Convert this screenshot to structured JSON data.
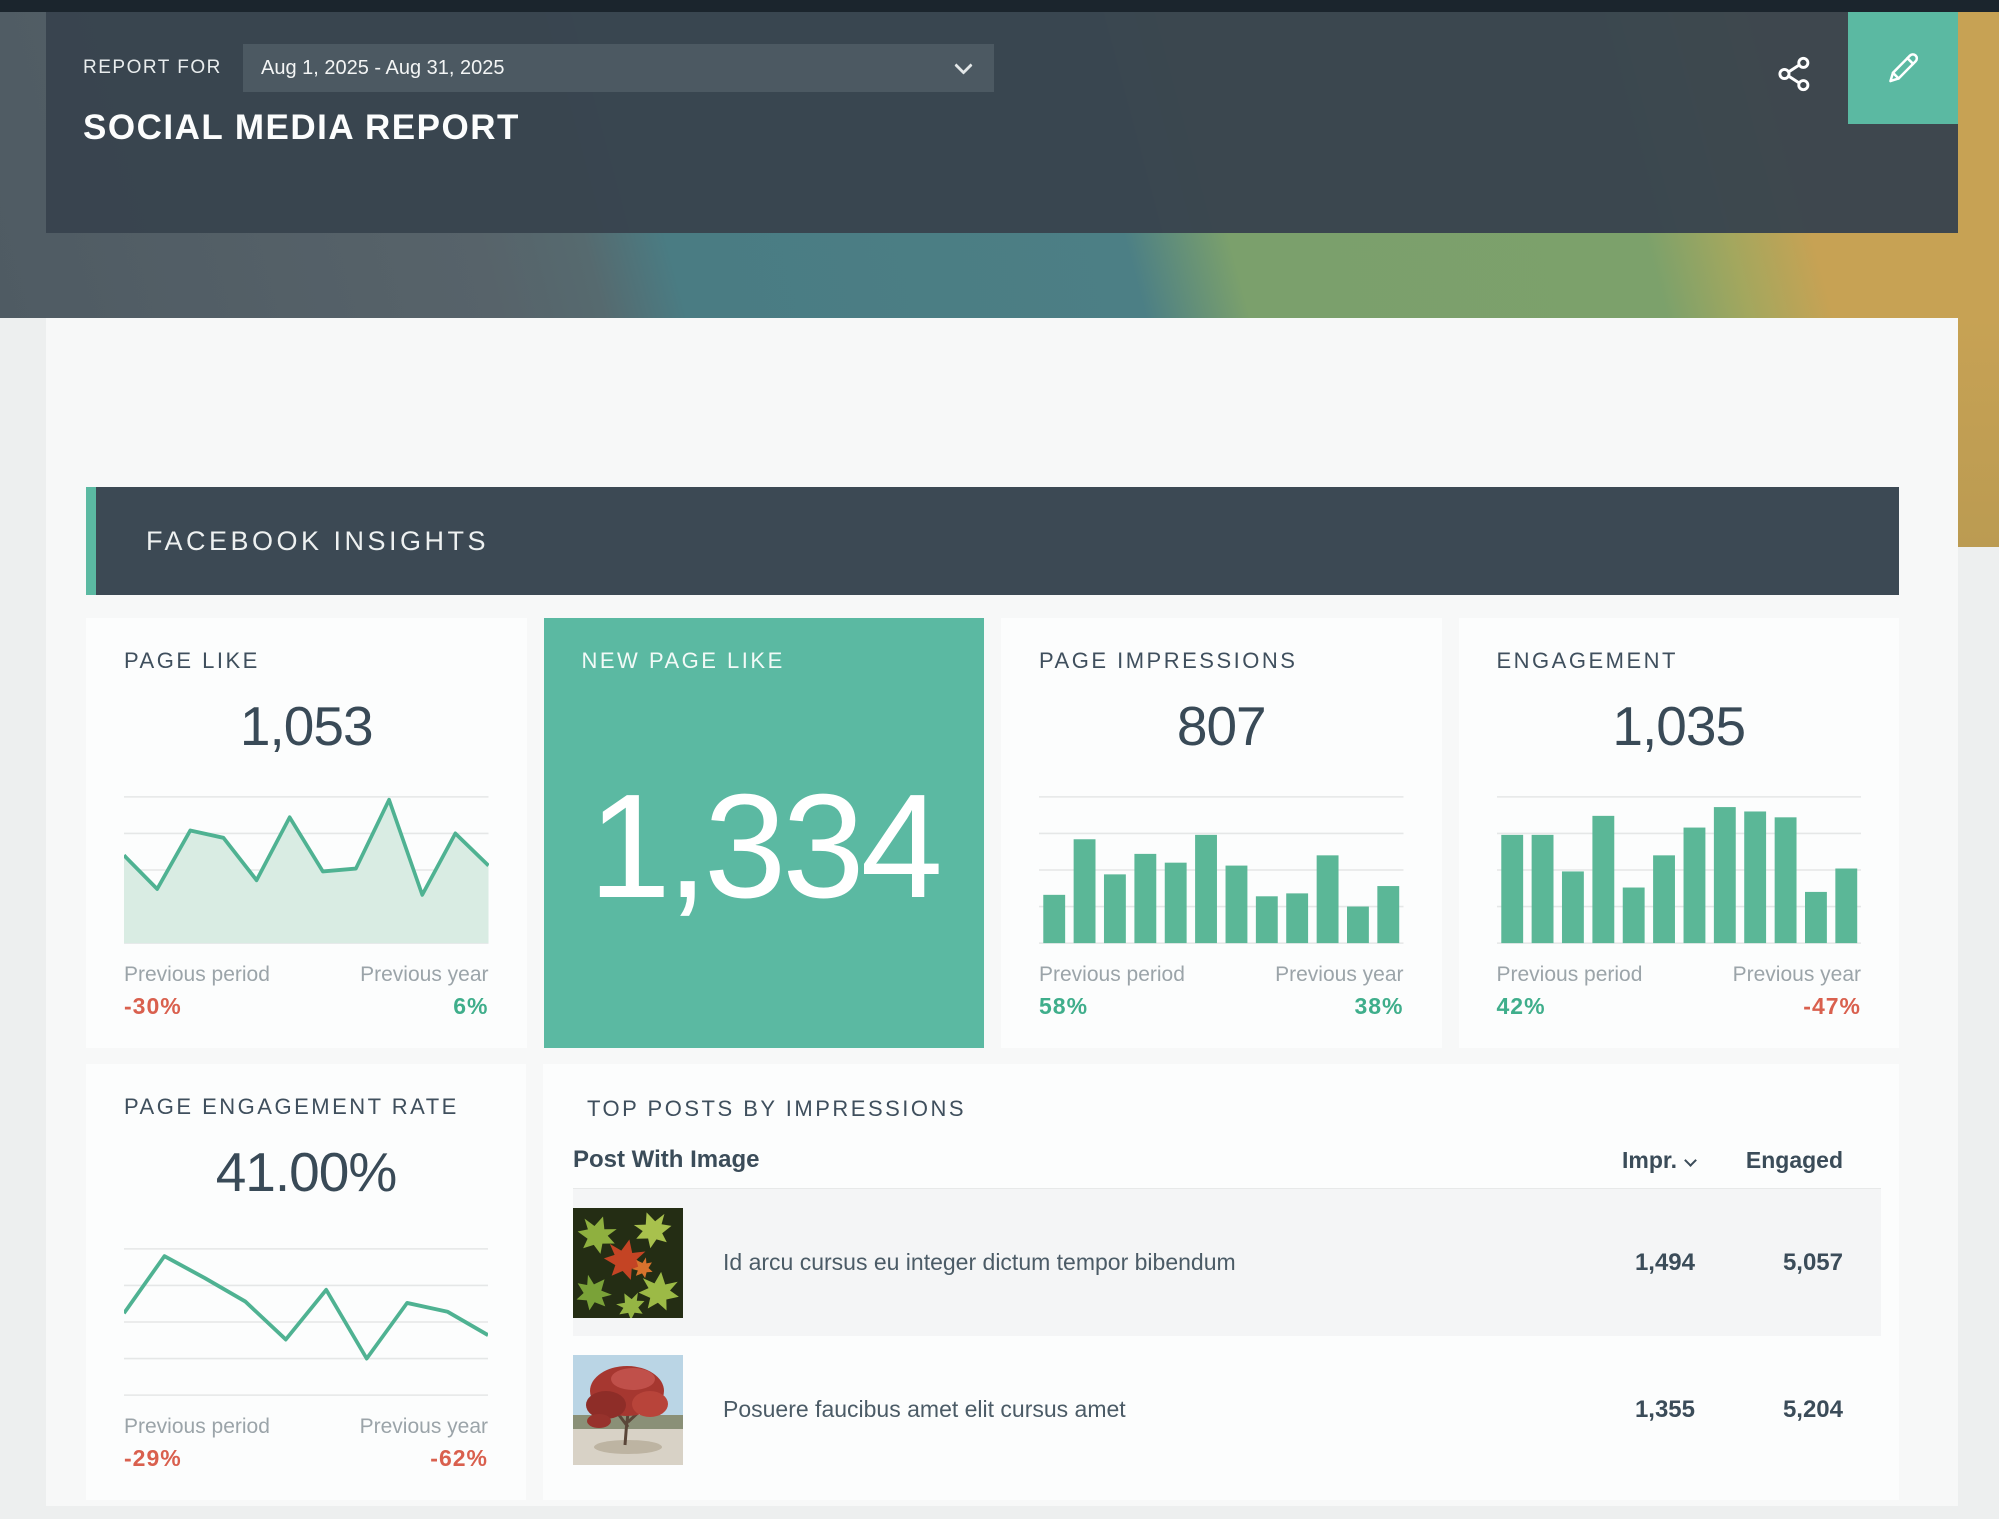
{
  "header": {
    "report_for_label": "REPORT FOR",
    "date_range": "Aug 1, 2025 - Aug 31, 2025",
    "title": "SOCIAL MEDIA REPORT"
  },
  "section": {
    "title": "FACEBOOK INSIGHTS"
  },
  "compare": {
    "period_label": "Previous period",
    "year_label": "Previous year"
  },
  "cards": [
    {
      "title": "PAGE LIKE",
      "value": "1,053",
      "previous_period": "-30%",
      "previous_period_dir": "neg",
      "previous_year": "6%",
      "previous_year_dir": "pos"
    },
    {
      "title": "NEW PAGE LIKE",
      "value": "1,334",
      "highlight": true
    },
    {
      "title": "PAGE IMPRESSIONS",
      "value": "807",
      "previous_period": "58%",
      "previous_period_dir": "pos",
      "previous_year": "38%",
      "previous_year_dir": "pos"
    },
    {
      "title": "ENGAGEMENT",
      "value": "1,035",
      "previous_period": "42%",
      "previous_period_dir": "pos",
      "previous_year": "-47%",
      "previous_year_dir": "neg"
    },
    {
      "title": "PAGE ENGAGEMENT RATE",
      "value": "41.00%",
      "previous_period": "-29%",
      "previous_period_dir": "neg",
      "previous_year": "-62%",
      "previous_year_dir": "neg"
    }
  ],
  "top_posts": {
    "section_title": "TOP POSTS BY IMPRESSIONS",
    "header": {
      "post": "Post With Image",
      "impressions": "Impr.",
      "engaged": "Engaged"
    },
    "sorted_by": "Impr.",
    "rows": [
      {
        "image": "autumn-leaves-thumbnail",
        "text": "Id arcu cursus eu integer dictum tempor bibendum",
        "impressions": "1,494",
        "engaged": "5,057"
      },
      {
        "image": "red-maple-tree-thumbnail",
        "text": "Posuere faucibus amet elit cursus amet",
        "impressions": "1,355",
        "engaged": "5,204"
      }
    ]
  },
  "colors": {
    "accent_teal": "#5bb9a2",
    "header_band": "#3a4750",
    "section_header_bg": "#3c4954",
    "positive": "#3fae8b",
    "negative": "#d9604e",
    "bar": "#5bb797",
    "line": "#4fb292",
    "area_fill": "#d9ece3",
    "gridline": "#e5e7e7",
    "big_number": "#394a57"
  },
  "chart_data": [
    {
      "type": "area",
      "card": "PAGE LIKE",
      "title": "Page likes trend (sparkline, unlabeled axes)",
      "x": [
        1,
        2,
        3,
        4,
        5,
        6,
        7,
        8,
        9,
        10,
        11,
        12
      ],
      "values_relative_0_1": [
        0.6,
        0.37,
        0.77,
        0.72,
        0.43,
        0.86,
        0.49,
        0.51,
        0.98,
        0.33,
        0.75,
        0.53
      ],
      "gridlines": 5,
      "legend": "none",
      "axis_labels": "none"
    },
    {
      "type": "bar",
      "card": "PAGE IMPRESSIONS",
      "title": "Page impressions per interval (sparkline, unlabeled axes)",
      "x": [
        1,
        2,
        3,
        4,
        5,
        6,
        7,
        8,
        9,
        10,
        11,
        12
      ],
      "values_relative_0_1": [
        0.33,
        0.71,
        0.47,
        0.61,
        0.55,
        0.74,
        0.53,
        0.32,
        0.34,
        0.6,
        0.25,
        0.39
      ],
      "gridlines": 5,
      "legend": "none",
      "axis_labels": "none"
    },
    {
      "type": "bar",
      "card": "ENGAGEMENT",
      "title": "Engagement per interval (sparkline, unlabeled axes)",
      "x": [
        1,
        2,
        3,
        4,
        5,
        6,
        7,
        8,
        9,
        10,
        11,
        12
      ],
      "values_relative_0_1": [
        0.74,
        0.74,
        0.49,
        0.87,
        0.38,
        0.6,
        0.79,
        0.93,
        0.9,
        0.86,
        0.35,
        0.51
      ],
      "gridlines": 5,
      "legend": "none",
      "axis_labels": "none"
    },
    {
      "type": "line",
      "card": "PAGE ENGAGEMENT RATE",
      "title": "Engagement rate trend (sparkline, unlabeled axes)",
      "x": [
        1,
        2,
        3,
        4,
        5,
        6,
        7,
        8,
        9,
        10
      ],
      "values_relative_0_1": [
        0.56,
        0.95,
        0.8,
        0.64,
        0.38,
        0.72,
        0.25,
        0.63,
        0.57,
        0.41
      ],
      "gridlines": 5,
      "legend": "none",
      "axis_labels": "none"
    }
  ]
}
